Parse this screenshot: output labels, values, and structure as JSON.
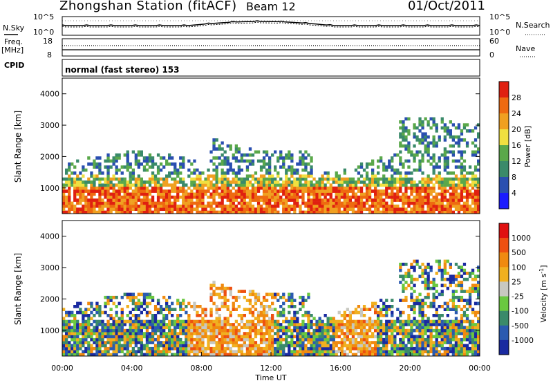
{
  "header": {
    "station": "Zhongshan Station (fitACF)",
    "beam": "Beam 12",
    "date": "01/Oct/2011"
  },
  "noise_panel": {
    "left_label": "N.Sky",
    "left_ticks": [
      "10^5",
      "10^0"
    ],
    "right_label": "N.Search",
    "right_ticks": [
      "10^5",
      "10^0"
    ]
  },
  "freq_panel": {
    "left_label_line1": "Freq.",
    "left_label_line2": "[MHz]",
    "left_ticks": [
      "18",
      "8"
    ],
    "right_label": "Nave",
    "right_ticks": [
      "60",
      "0"
    ]
  },
  "cpid_panel": {
    "label": "CPID",
    "mode_text": "normal (fast stereo) 153"
  },
  "chart_data": [
    {
      "type": "heatmap",
      "title": "",
      "ylabel": "Slant Range [km]",
      "xlabel": "",
      "ylim": [
        180,
        4500
      ],
      "yticks": [
        "1000",
        "2000",
        "3000",
        "4000"
      ],
      "colorbar_label": "Power [dB]",
      "colorbar_ticks": [
        "4",
        "8",
        "12",
        "16",
        "20",
        "24",
        "28"
      ],
      "colors": [
        "#1a1aff",
        "#2a4fb0",
        "#3a8a6a",
        "#5aa84a",
        "#f0e040",
        "#f0a020",
        "#ee6a10",
        "#e02010"
      ]
    },
    {
      "type": "heatmap",
      "title": "",
      "ylabel": "Slant Range [km]",
      "xlabel": "Time UT",
      "xticks": [
        "00:00",
        "04:00",
        "08:00",
        "12:00",
        "16:00",
        "20:00",
        "00:00"
      ],
      "ylim": [
        180,
        4500
      ],
      "yticks": [
        "1000",
        "2000",
        "3000",
        "4000"
      ],
      "colorbar_label": "Velocity [m s",
      "colorbar_label_sup": "-1",
      "colorbar_label_end": "]",
      "colorbar_ticks": [
        "1000",
        "500",
        "100",
        "25",
        "-25",
        "-100",
        "-500",
        "-1000"
      ],
      "colors": [
        "#1a2aa0",
        "#2a5ab0",
        "#3a8a6a",
        "#6ac840",
        "#c8c8c0",
        "#f0b020",
        "#f08a10",
        "#ee5010",
        "#e01010"
      ]
    }
  ]
}
